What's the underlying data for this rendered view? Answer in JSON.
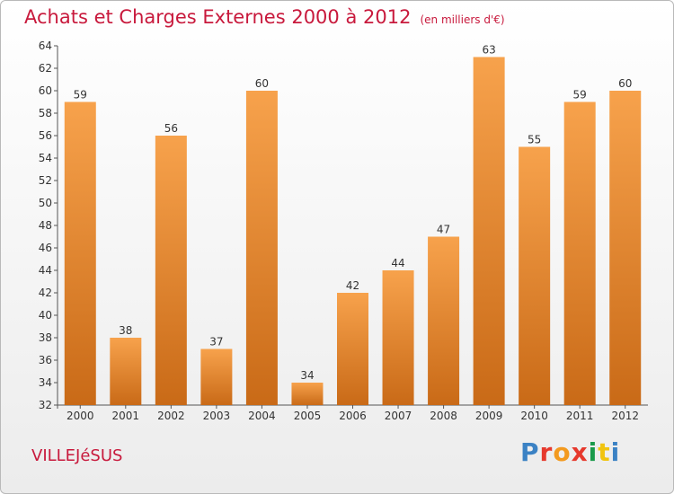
{
  "header": {
    "title": "Achats et Charges Externes 2000 à 2012",
    "unit": "(en milliers d'€)"
  },
  "footer": {
    "commune": "VILLEJéSUS",
    "logo": "Proxiti"
  },
  "colors": {
    "bar_top": "#f7a24c",
    "bar_bottom": "#c96a17",
    "title": "#c8193c"
  },
  "chart_data": {
    "type": "bar",
    "title": "Achats et Charges Externes 2000 à 2012",
    "subtitle": "(en milliers d'€)",
    "categories": [
      "2000",
      "2001",
      "2002",
      "2003",
      "2004",
      "2005",
      "2006",
      "2007",
      "2008",
      "2009",
      "2010",
      "2011",
      "2012"
    ],
    "values": [
      59,
      38,
      56,
      37,
      60,
      34,
      42,
      44,
      47,
      63,
      55,
      59,
      60
    ],
    "xlabel": "",
    "ylabel": "",
    "ylim": [
      32,
      64
    ],
    "yticks": [
      32,
      34,
      36,
      38,
      40,
      42,
      44,
      46,
      48,
      50,
      52,
      54,
      56,
      58,
      60,
      62,
      64
    ],
    "grid": false,
    "legend": "none"
  }
}
